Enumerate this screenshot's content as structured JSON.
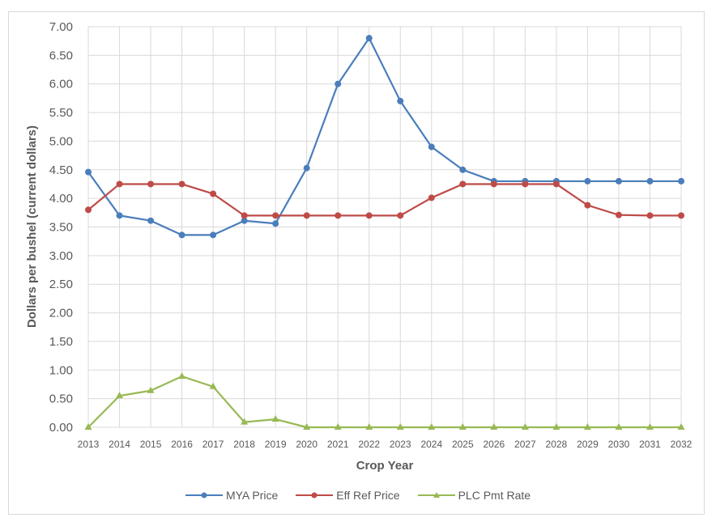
{
  "chart_data": {
    "type": "line",
    "title": "",
    "xlabel": "Crop Year",
    "ylabel": "Dollars per bushel (current dollars)",
    "ylim": [
      0,
      7
    ],
    "yticks": [
      "0.00",
      "0.50",
      "1.00",
      "1.50",
      "2.00",
      "2.50",
      "3.00",
      "3.50",
      "4.00",
      "4.50",
      "5.00",
      "5.50",
      "6.00",
      "6.50",
      "7.00"
    ],
    "grid": true,
    "legend_position": "bottom",
    "categories": [
      "2013",
      "2014",
      "2015",
      "2016",
      "2017",
      "2018",
      "2019",
      "2020",
      "2021",
      "2022",
      "2023",
      "2024",
      "2025",
      "2026",
      "2027",
      "2028",
      "2029",
      "2030",
      "2031",
      "2032"
    ],
    "series": [
      {
        "name": "MYA Price",
        "color": "#4a7ebb",
        "marker": "circle",
        "values": [
          4.46,
          3.7,
          3.61,
          3.36,
          3.36,
          3.61,
          3.56,
          4.53,
          6.0,
          6.8,
          5.7,
          4.9,
          4.5,
          4.3,
          4.3,
          4.3,
          4.3,
          4.3,
          4.3,
          4.3
        ]
      },
      {
        "name": "Eff Ref Price",
        "color": "#be4b48",
        "marker": "circle",
        "values": [
          3.8,
          4.25,
          4.25,
          4.25,
          4.08,
          3.7,
          3.7,
          3.7,
          3.7,
          3.7,
          3.7,
          4.01,
          4.25,
          4.25,
          4.25,
          4.25,
          3.88,
          3.71,
          3.7,
          3.7
        ]
      },
      {
        "name": "PLC Pmt Rate",
        "color": "#98b954",
        "marker": "triangle",
        "values": [
          0.0,
          0.55,
          0.64,
          0.89,
          0.71,
          0.09,
          0.14,
          0.0,
          0.0,
          0.0,
          0.0,
          0.0,
          0.0,
          0.0,
          0.0,
          0.0,
          0.0,
          0.0,
          0.0,
          0.0
        ]
      }
    ]
  },
  "legend": {
    "items": [
      {
        "label": "MYA Price",
        "color": "#4a7ebb"
      },
      {
        "label": "Eff Ref Price",
        "color": "#be4b48"
      },
      {
        "label": "PLC Pmt Rate",
        "color": "#98b954"
      }
    ]
  }
}
